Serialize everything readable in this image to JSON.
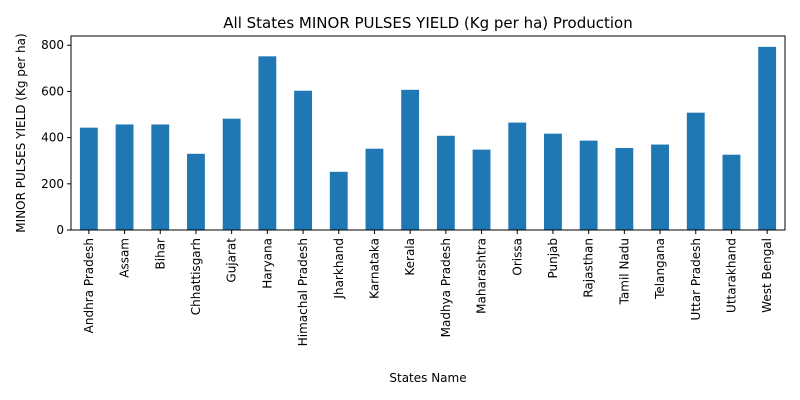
{
  "chart_data": {
    "type": "bar",
    "title": "All States MINOR PULSES YIELD (Kg per ha) Production",
    "xlabel": "States Name",
    "ylabel": "MINOR PULSES YIELD (Kg per ha)",
    "categories": [
      "Andhra Pradesh",
      "Assam",
      "Bihar",
      "Chhattisgarh",
      "Gujarat",
      "Haryana",
      "Himachal Pradesh",
      "Jharkhand",
      "Karnataka",
      "Kerala",
      "Madhya Pradesh",
      "Maharashtra",
      "Orissa",
      "Punjab",
      "Rajasthan",
      "Tamil Nadu",
      "Telangana",
      "Uttar Pradesh",
      "Uttarakhand",
      "West Bengal"
    ],
    "values": [
      443,
      457,
      457,
      330,
      482,
      752,
      603,
      252,
      352,
      607,
      408,
      348,
      465,
      417,
      387,
      355,
      370,
      508,
      326,
      793
    ],
    "ylim": [
      0,
      840
    ],
    "yticks": [
      0,
      200,
      400,
      600,
      800
    ],
    "grid": false,
    "legend": "none",
    "bar_color": "#1f77b4"
  }
}
